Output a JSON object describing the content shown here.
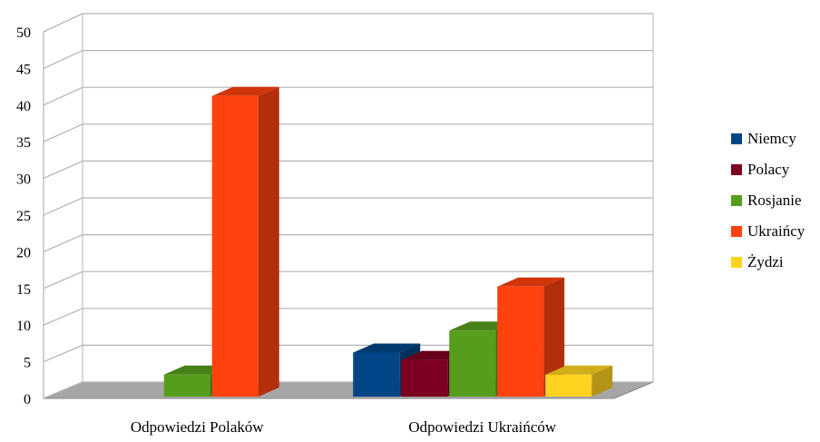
{
  "chart_data": {
    "type": "bar",
    "title": "",
    "xlabel": "",
    "ylabel": "",
    "ylim": [
      0,
      50
    ],
    "yticks": [
      0,
      5,
      10,
      15,
      20,
      25,
      30,
      35,
      40,
      45,
      50
    ],
    "grid": true,
    "three_d": true,
    "legend_placement": "right",
    "categories": [
      "Odpowiedzi Polaków",
      "Odpowiedzi Ukraińców"
    ],
    "series": [
      {
        "name": "Niemcy",
        "color": "#004586",
        "values": [
          0,
          6
        ]
      },
      {
        "name": "Polacy",
        "color": "#7e0021",
        "values": [
          0,
          5
        ]
      },
      {
        "name": "Rosjanie",
        "color": "#579d1c",
        "values": [
          3,
          9
        ]
      },
      {
        "name": "Ukraińcy",
        "color": "#ff420e",
        "values": [
          41,
          15
        ]
      },
      {
        "name": "Żydzi",
        "color": "#ffd320",
        "values": [
          0,
          3
        ]
      }
    ]
  }
}
